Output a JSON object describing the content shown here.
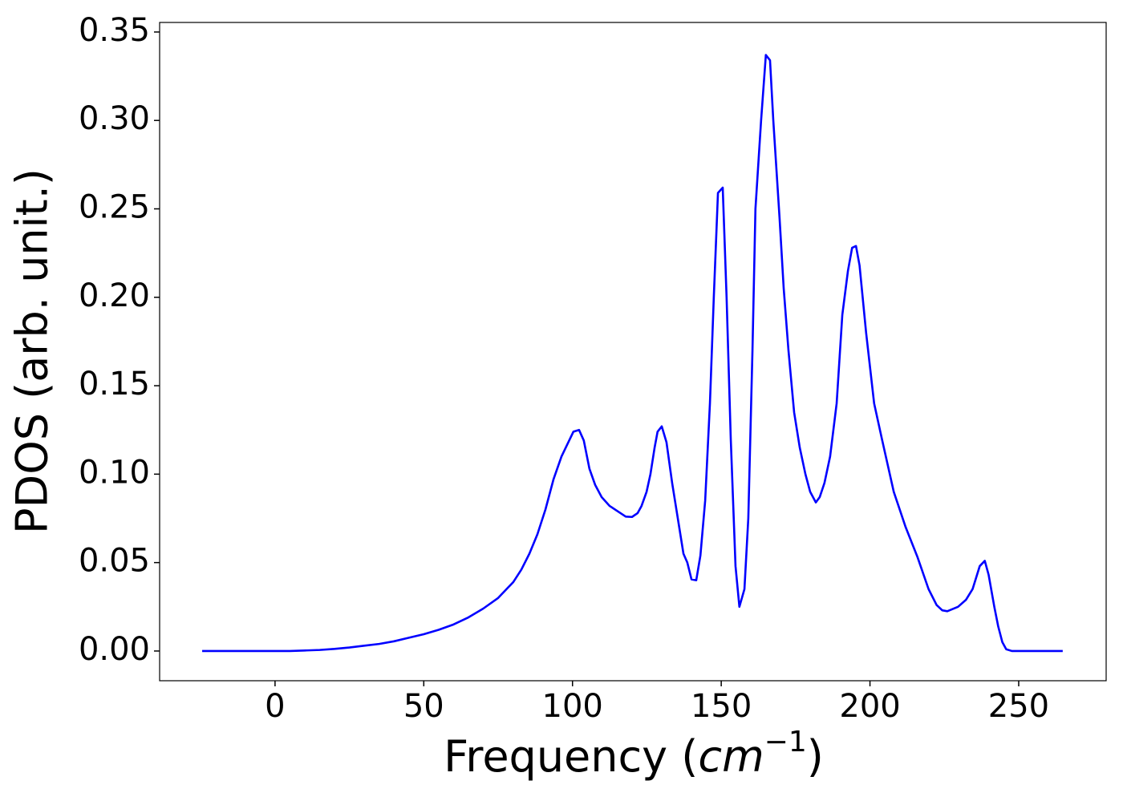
{
  "chart_data": {
    "type": "line",
    "xlabel": [
      "Frequency (",
      "cm",
      "−1",
      ")"
    ],
    "ylabel": "PDOS (arb. unit.)",
    "xlim": [
      -38.8,
      279.4
    ],
    "ylim": [
      -0.0168,
      0.3554
    ],
    "xticks": [
      0,
      50,
      100,
      150,
      200,
      250
    ],
    "yticks": [
      {
        "value": 0,
        "label": "0.00"
      },
      0.05,
      {
        "value": 0.1,
        "label": "0.10"
      },
      0.15,
      {
        "value": 0.2,
        "label": "0.20"
      },
      0.25,
      {
        "value": 0.3,
        "label": "0.30"
      },
      0.35
    ],
    "series": [
      {
        "color": "#0000ff",
        "x": [
          -24.5,
          0,
          5,
          10,
          15,
          20,
          25,
          30,
          35,
          40,
          45,
          50,
          55,
          60,
          65,
          70,
          75,
          80.1,
          82.8,
          85.5,
          88.2,
          90.9,
          93.6,
          96.3,
          100.3,
          102.2,
          103.8,
          105.7,
          107.6,
          109.8,
          112.5,
          115.2,
          117.9,
          120,
          121.9,
          123.2,
          124.9,
          126.2,
          127.6,
          128.6,
          130,
          131.6,
          133.5,
          135.4,
          137.3,
          138.6,
          140,
          141.6,
          143,
          144.6,
          146.2,
          147.5,
          148.9,
          150.5,
          151.8,
          153.2,
          154.8,
          156.1,
          157.8,
          159.1,
          160.5,
          161.5,
          163.4,
          165,
          166.4,
          167.5,
          169.6,
          171,
          172.6,
          174.5,
          176.4,
          178.3,
          179.9,
          181.8,
          183.1,
          184.7,
          186.6,
          188.8,
          190.7,
          192.6,
          194,
          195.3,
          196.5,
          198.7,
          201.4,
          204,
          208,
          212,
          216,
          219.7,
          222.4,
          224.3,
          226,
          229.6,
          232.3,
          234.5,
          236.9,
          238.6,
          239.9,
          241.8,
          243.1,
          244.5,
          245.8,
          247.7,
          264.8
        ],
        "values": [
          0,
          0,
          0,
          0.0003,
          0.0006,
          0.0012,
          0.002,
          0.003,
          0.004,
          0.0055,
          0.0075,
          0.0095,
          0.012,
          0.015,
          0.019,
          0.024,
          0.03,
          0.039,
          0.046,
          0.055,
          0.066,
          0.08,
          0.097,
          0.11,
          0.124,
          0.125,
          0.119,
          0.103,
          0.094,
          0.087,
          0.082,
          0.079,
          0.076,
          0.0758,
          0.078,
          0.082,
          0.09,
          0.1,
          0.115,
          0.124,
          0.127,
          0.118,
          0.095,
          0.075,
          0.055,
          0.05,
          0.0405,
          0.04,
          0.054,
          0.085,
          0.14,
          0.2,
          0.259,
          0.262,
          0.2,
          0.12,
          0.048,
          0.025,
          0.035,
          0.075,
          0.17,
          0.25,
          0.3,
          0.337,
          0.334,
          0.3,
          0.245,
          0.205,
          0.17,
          0.135,
          0.115,
          0.1,
          0.09,
          0.084,
          0.087,
          0.095,
          0.11,
          0.14,
          0.19,
          0.215,
          0.228,
          0.229,
          0.218,
          0.18,
          0.14,
          0.12,
          0.09,
          0.07,
          0.053,
          0.035,
          0.026,
          0.023,
          0.0225,
          0.025,
          0.029,
          0.035,
          0.048,
          0.051,
          0.043,
          0.025,
          0.014,
          0.005,
          0.001,
          0,
          0
        ]
      }
    ]
  }
}
